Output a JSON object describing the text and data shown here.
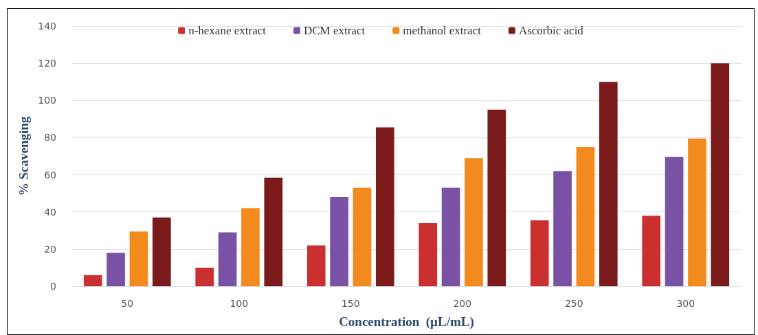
{
  "chart_data": {
    "type": "bar",
    "xlabel": "Concentration  (µL/mL)",
    "ylabel": "% Scavenging",
    "categories": [
      "50",
      "100",
      "150",
      "200",
      "250",
      "300"
    ],
    "series": [
      {
        "name": "n-hexane extract",
        "color": "#c9302f",
        "values": [
          6,
          10,
          22,
          34,
          35.5,
          38
        ]
      },
      {
        "name": "DCM extract",
        "color": "#7a52a5",
        "values": [
          18,
          29,
          48,
          53,
          62,
          69.5
        ]
      },
      {
        "name": "methanol extract",
        "color": "#f28a1e",
        "values": [
          29.5,
          42,
          53,
          69,
          75,
          79.5
        ]
      },
      {
        "name": "Ascorbic acid",
        "color": "#7b1a1a",
        "values": [
          37,
          58.5,
          85.5,
          95,
          110,
          120
        ]
      }
    ],
    "ylim": [
      0,
      140
    ],
    "yticks": [
      0,
      20,
      40,
      60,
      80,
      100,
      120,
      140
    ],
    "grid": "y",
    "legend": "top"
  }
}
